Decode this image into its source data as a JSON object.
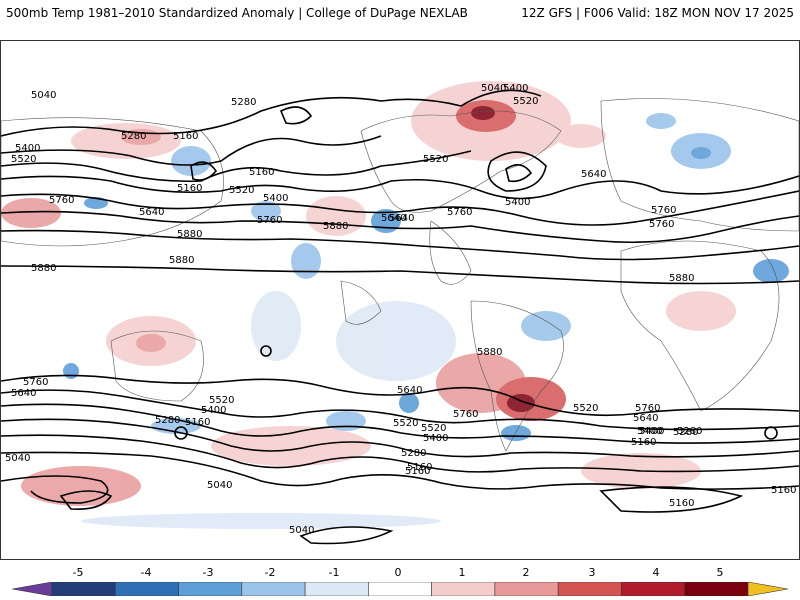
{
  "header": {
    "title": "500mb Temp 1981–2010 Standardized Anomaly | College of DuPage NEXLAB",
    "run_info": "12Z GFS | F006 Valid: 18Z MON NOV 17 2025"
  },
  "legend": {
    "ticks": [
      "-5",
      "-4",
      "-3",
      "-2",
      "-1",
      "0",
      "1",
      "2",
      "3",
      "4",
      "5"
    ],
    "colors": [
      "#6a3d9a",
      "#233c7a",
      "#2f6fb5",
      "#5f9fd8",
      "#9cc4ea",
      "#dde9f6",
      "#ffffff",
      "#f4cccc",
      "#e89a9a",
      "#d45454",
      "#b01c2c",
      "#7a0010",
      "#f0c020"
    ]
  },
  "map": {
    "contour_labels": [
      "5040",
      "5280",
      "5160",
      "5400",
      "5520",
      "5280",
      "5160",
      "5040",
      "5400",
      "5520",
      "5640",
      "5760",
      "5880",
      "5160",
      "5400",
      "5520",
      "5640",
      "5760",
      "5880",
      "5880",
      "5760",
      "5640",
      "5760",
      "5880",
      "5880",
      "5760",
      "5640",
      "5400",
      "5520",
      "5640",
      "5760",
      "5280",
      "5160",
      "5400",
      "5520",
      "5280",
      "5160",
      "5040",
      "5040",
      "5640",
      "5520",
      "5400",
      "5760",
      "5880",
      "5520",
      "5640",
      "5760",
      "5400",
      "5280",
      "5160",
      "5160",
      "5040",
      "5160",
      "5520",
      "5160",
      "5400",
      "5280"
    ]
  }
}
